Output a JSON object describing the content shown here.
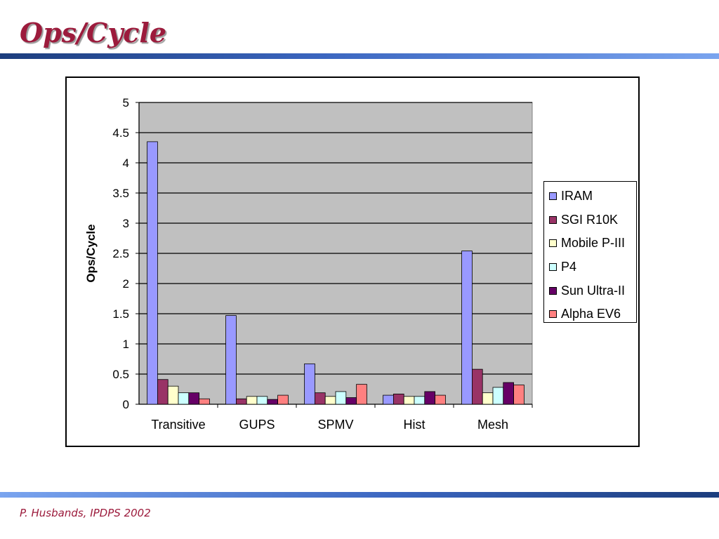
{
  "slide": {
    "title": "Ops/Cycle",
    "footer": "P. Husbands, IPDPS 2002"
  },
  "chart_data": {
    "type": "bar",
    "ylabel": "Ops/Cycle",
    "xlabel": "",
    "ylim": [
      0,
      5
    ],
    "yticks": [
      "0",
      "0.5",
      "1",
      "1.5",
      "2",
      "2.5",
      "3",
      "3.5",
      "4",
      "4.5",
      "5"
    ],
    "grid": true,
    "legend_position": "right",
    "categories": [
      "Transitive",
      "GUPS",
      "SPMV",
      "Hist",
      "Mesh"
    ],
    "series": [
      {
        "name": "IRAM",
        "color": "#9999ff",
        "values": [
          4.35,
          1.47,
          0.67,
          0.15,
          2.54
        ]
      },
      {
        "name": "SGI R10K",
        "color": "#993366",
        "values": [
          0.41,
          0.09,
          0.19,
          0.17,
          0.58
        ]
      },
      {
        "name": "Mobile P-III",
        "color": "#ffffcc",
        "values": [
          0.3,
          0.13,
          0.13,
          0.13,
          0.19
        ]
      },
      {
        "name": "P4",
        "color": "#ccffff",
        "values": [
          0.19,
          0.13,
          0.21,
          0.13,
          0.28
        ]
      },
      {
        "name": "Sun Ultra-II",
        "color": "#660066",
        "values": [
          0.19,
          0.08,
          0.11,
          0.21,
          0.36
        ]
      },
      {
        "name": "Alpha EV6",
        "color": "#ff8080",
        "values": [
          0.09,
          0.15,
          0.33,
          0.15,
          0.32
        ]
      }
    ]
  }
}
